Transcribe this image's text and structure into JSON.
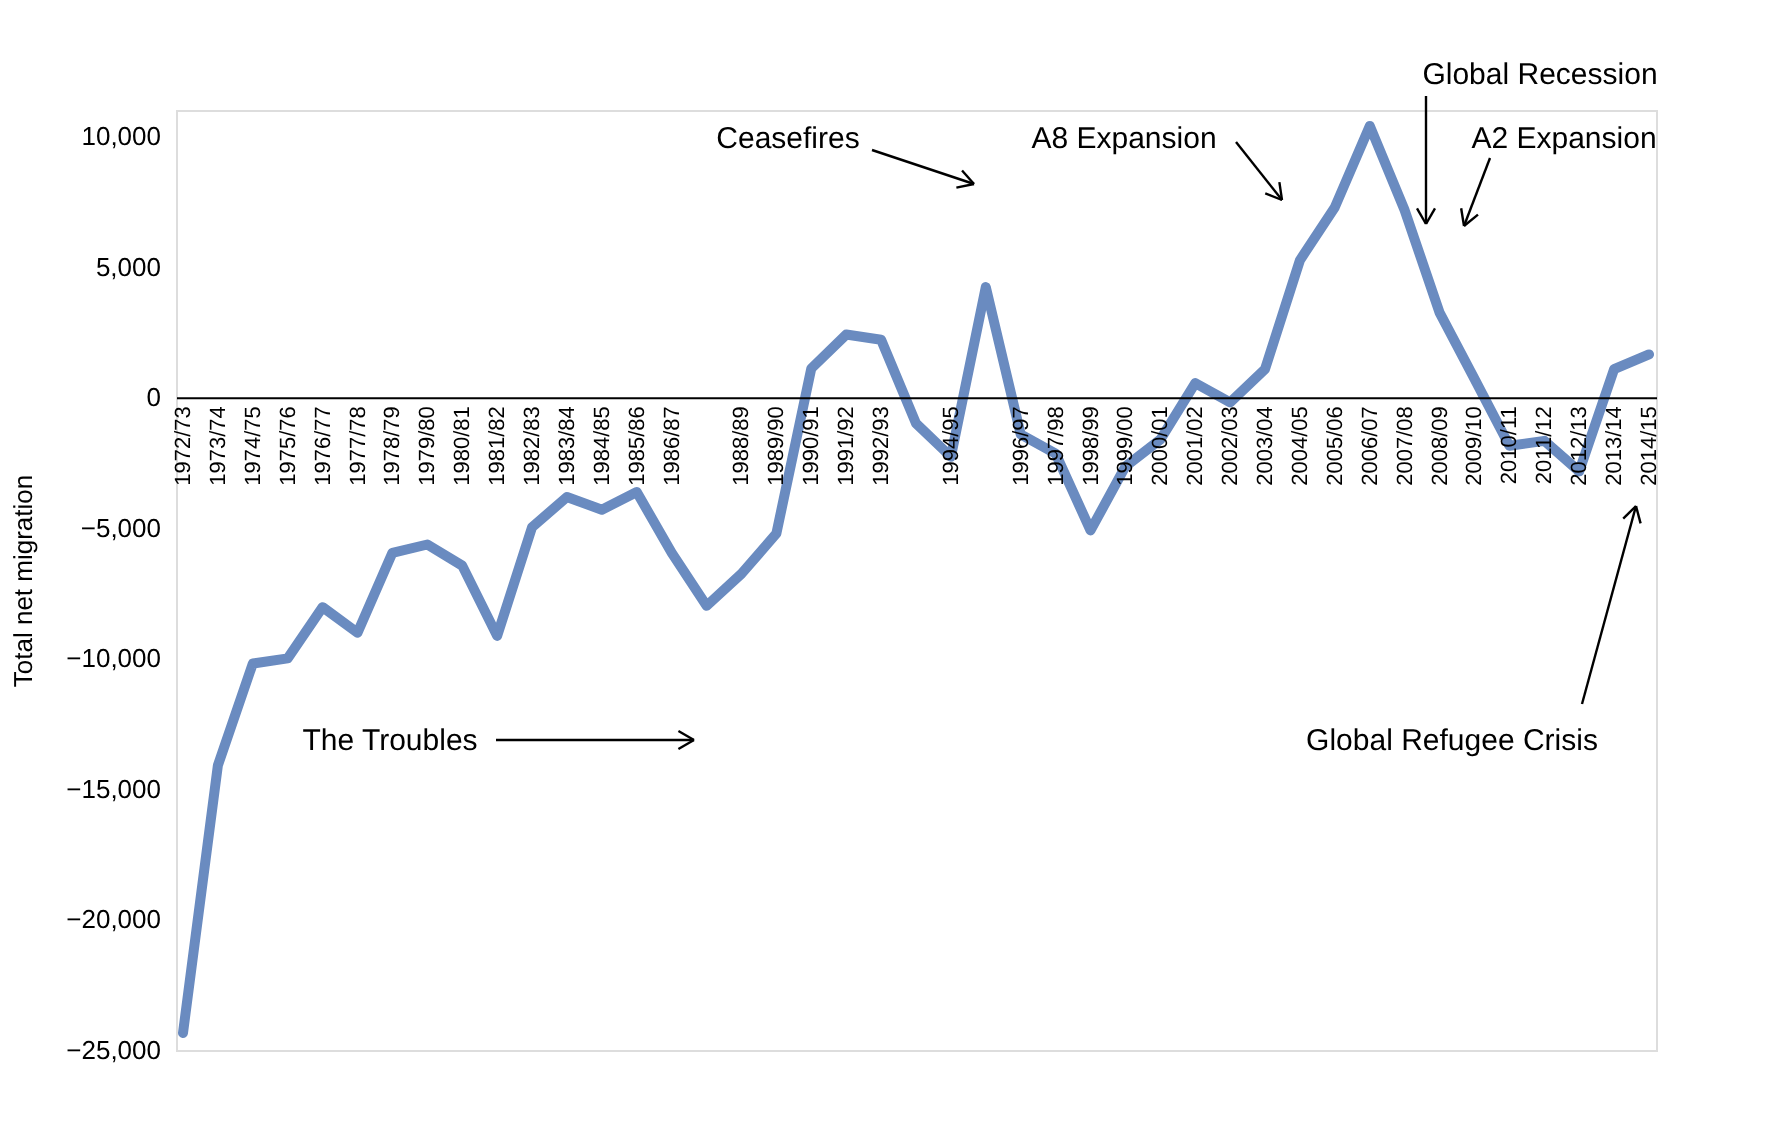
{
  "chart_data": {
    "type": "line",
    "ylabel": "Total net migration",
    "categories": [
      "1972/73",
      "1973/74",
      "1974/75",
      "1975/76",
      "1976/77",
      "1977/78",
      "1978/79",
      "1979/80",
      "1980/81",
      "1981/82",
      "1982/83",
      "1983/84",
      "1984/85",
      "1985/86",
      "1986/87",
      null,
      "1988/89",
      "1989/90",
      "1990/91",
      "1991/92",
      "1992/93",
      null,
      "1994/95",
      null,
      "1996/97",
      "1997/98",
      "1998/99",
      "1999/00",
      "2000/01",
      "2001/02",
      "2002/03",
      "2003/04",
      "2004/05",
      "2005/06",
      "2006/07",
      "2007/08",
      "2008/09",
      "2009/10",
      "2010/11",
      "2011/12",
      "2012/13",
      "2013/14",
      "2014/15"
    ],
    "series": [
      {
        "color": "#6a8bc0",
        "values": [
          -24350,
          -14100,
          -10200,
          -10000,
          -8040,
          -9020,
          -5960,
          -5640,
          -6450,
          -9140,
          -4980,
          -3820,
          -4310,
          -3630,
          -5960,
          -7990,
          -6760,
          -5220,
          1100,
          2400,
          2200,
          -1000,
          -2280,
          4220,
          -1420,
          -2160,
          -5100,
          -2650,
          -1620,
          540,
          -200,
          1080,
          5250,
          7280,
          10390,
          7160,
          3240,
          700,
          -1860,
          -1670,
          -2840,
          1080,
          1640
        ]
      }
    ],
    "ylim": [
      -25000,
      11000
    ],
    "yticks": [
      {
        "value": -25000,
        "label": "−25,000"
      },
      {
        "value": -20000,
        "label": "−20,000"
      },
      {
        "value": -15000,
        "label": "−15,000"
      },
      {
        "value": -10000,
        "label": "−10,000"
      },
      {
        "value": -5000,
        "label": "−5,000"
      },
      0,
      {
        "value": 5000,
        "label": "5,000"
      },
      {
        "value": 10000,
        "label": "10,000"
      }
    ],
    "grid": false,
    "marker": "none",
    "line_style": "solid",
    "annotations": [
      "Ceasefires",
      "A8 Expansion",
      "Global Recession",
      "A2 Expansion",
      "The Troubles",
      "Global Refugee Crisis"
    ]
  }
}
